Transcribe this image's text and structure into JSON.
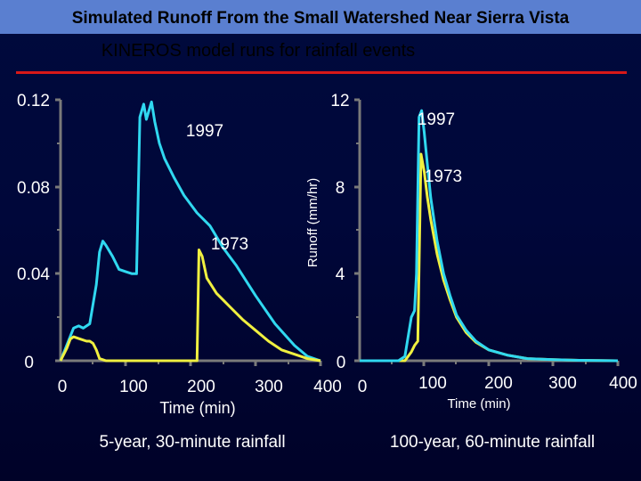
{
  "header": {
    "title": "Simulated Runoff From the Small Watershed Near Sierra Vista",
    "subtitle": "KINEROS model runs for rainfall events"
  },
  "colors": {
    "series_1997": "#30d8f0",
    "series_1973": "#f0f040",
    "axis": "#7a7a7a",
    "header_bar": "#5a7fd0",
    "accent": "#d81818"
  },
  "footer": {
    "left_caption": "5-year, 30-minute rainfall",
    "right_caption": "100-year, 60-minute rainfall"
  },
  "chart_data": [
    {
      "type": "line",
      "title": "5-year, 30-minute rainfall",
      "xlabel": "Time (min)",
      "ylabel": "",
      "xlim": [
        0,
        400
      ],
      "ylim": [
        0,
        0.12
      ],
      "xticks": [
        "0",
        "100",
        "200",
        "300",
        "400"
      ],
      "yticks": [
        "0",
        "0.04",
        "0.08",
        "0.12"
      ],
      "series": [
        {
          "name": "1997",
          "color": "#30d8f0",
          "x": [
            0,
            12,
            20,
            28,
            35,
            45,
            55,
            60,
            65,
            70,
            80,
            90,
            100,
            110,
            117,
            122,
            128,
            132,
            140,
            145,
            152,
            160,
            175,
            190,
            210,
            230,
            250,
            270,
            300,
            330,
            360,
            380,
            400
          ],
          "y": [
            0,
            0.009,
            0.015,
            0.016,
            0.015,
            0.017,
            0.035,
            0.05,
            0.055,
            0.053,
            0.048,
            0.042,
            0.041,
            0.04,
            0.04,
            0.112,
            0.118,
            0.111,
            0.119,
            0.11,
            0.1,
            0.093,
            0.084,
            0.076,
            0.068,
            0.062,
            0.052,
            0.044,
            0.03,
            0.017,
            0.007,
            0.002,
            0
          ]
        },
        {
          "name": "1973",
          "color": "#f0f040",
          "x": [
            0,
            10,
            15,
            20,
            30,
            40,
            45,
            50,
            55,
            60,
            70,
            100,
            150,
            200,
            210,
            213,
            218,
            225,
            240,
            260,
            280,
            300,
            320,
            340,
            360,
            380,
            400
          ],
          "y": [
            0,
            0.006,
            0.01,
            0.011,
            0.01,
            0.009,
            0.009,
            0.008,
            0.005,
            0.001,
            0,
            0,
            0,
            0,
            0,
            0.051,
            0.048,
            0.038,
            0.031,
            0.025,
            0.019,
            0.014,
            0.009,
            0.005,
            0.003,
            0.001,
            0
          ]
        }
      ],
      "annotations": [
        "1997",
        "1973"
      ]
    },
    {
      "type": "line",
      "title": "100-year, 60-minute rainfall",
      "xlabel": "Time (min)",
      "ylabel": "Runoff (mm/hr)",
      "xlim": [
        0,
        400
      ],
      "ylim": [
        0,
        12
      ],
      "xticks": [
        "0",
        "100",
        "200",
        "300",
        "400"
      ],
      "yticks": [
        "0",
        "4",
        "8",
        "12"
      ],
      "series": [
        {
          "name": "1997",
          "color": "#30d8f0",
          "x": [
            0,
            60,
            70,
            80,
            85,
            88,
            92,
            96,
            100,
            105,
            110,
            120,
            130,
            140,
            150,
            165,
            180,
            200,
            230,
            260,
            300,
            340,
            400
          ],
          "y": [
            0,
            0,
            0.2,
            2.0,
            2.3,
            4.0,
            11.2,
            11.5,
            10.5,
            9.0,
            7.5,
            5.5,
            4.0,
            3.0,
            2.1,
            1.4,
            0.9,
            0.5,
            0.25,
            0.1,
            0.05,
            0.02,
            0
          ]
        },
        {
          "name": "1973",
          "color": "#f0f040",
          "x": [
            0,
            70,
            80,
            85,
            90,
            95,
            100,
            105,
            110,
            120,
            130,
            140,
            150,
            165,
            180,
            200,
            230,
            260,
            300,
            340,
            400
          ],
          "y": [
            0,
            0,
            0.4,
            0.7,
            0.9,
            9.5,
            8.7,
            7.5,
            6.5,
            4.9,
            3.7,
            2.8,
            2.0,
            1.3,
            0.85,
            0.5,
            0.25,
            0.1,
            0.05,
            0.02,
            0
          ]
        }
      ],
      "annotations": [
        "1997",
        "1973"
      ]
    }
  ]
}
